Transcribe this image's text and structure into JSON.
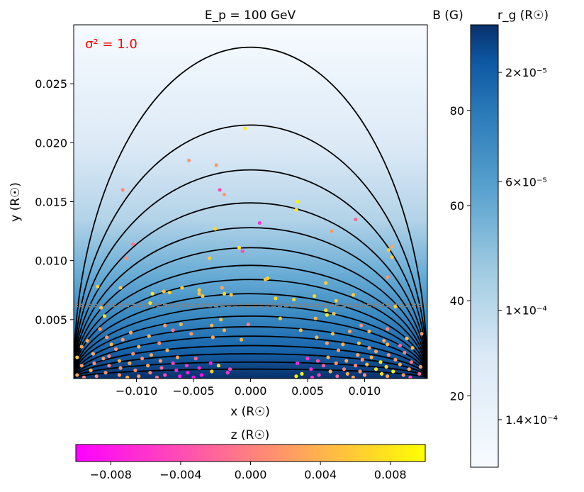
{
  "chart_data": {
    "type": "scatter",
    "title": "E_p = 100 GeV",
    "annotation": "σ² = 1.0",
    "annotation_color": "#ff0000",
    "xlabel": "x (R☉)",
    "ylabel": "y (R☉)",
    "xlim": [
      -0.0155,
      0.0155
    ],
    "ylim": [
      0.0,
      0.03
    ],
    "xticks": [
      -0.01,
      -0.005,
      0.0,
      0.005,
      0.01
    ],
    "xtick_labels": [
      "−0.010",
      "−0.005",
      "0.000",
      "0.005",
      "0.010"
    ],
    "yticks": [
      0.005,
      0.01,
      0.015,
      0.02,
      0.025
    ],
    "ytick_labels": [
      "0.005",
      "0.010",
      "0.015",
      "0.020",
      "0.025"
    ],
    "field_line_color": "#000000",
    "field_line_half_width": 0.0155,
    "field_line_apexes": [
      0.0281,
      0.0215,
      0.0177,
      0.0149,
      0.0128,
      0.0111,
      0.0096,
      0.0084,
      0.0072,
      0.0062,
      0.0053,
      0.0044,
      0.0036,
      0.0028,
      0.0021,
      0.0014,
      0.0008
    ],
    "reference_lines": {
      "style": "dashed",
      "color": "#808080",
      "y": [
        0.0061,
        0.0063
      ]
    },
    "background_colormap": "Blues",
    "z_colorbar": {
      "label": "z (R☉)",
      "colormap": "spring",
      "range": [
        -0.01,
        0.01
      ],
      "ticks": [
        -0.008,
        -0.004,
        0.0,
        0.004,
        0.008
      ],
      "tick_labels": [
        "−0.008",
        "−0.004",
        "0.000",
        "0.004",
        "0.008"
      ]
    },
    "b_colorbar": {
      "label_left": "B (G)",
      "label_right": "r_g (R☉)",
      "colormap": "Blues",
      "range": [
        5,
        98
      ],
      "ticks_left": [
        20,
        40,
        60,
        80
      ],
      "tick_labels_left": [
        "20",
        "40",
        "60",
        "80"
      ],
      "ticks_right": [
        15,
        38,
        65,
        88
      ],
      "tick_labels_right": [
        "1.4×10⁻⁴",
        "1×10⁻⁴",
        "6×10⁻⁵",
        "2×10⁻⁵"
      ]
    },
    "points": [
      {
        "x": -0.0005,
        "y": 0.0212,
        "z": 0.009
      },
      {
        "x": -0.0054,
        "y": 0.0185,
        "z": 0.002
      },
      {
        "x": -0.003,
        "y": 0.0181,
        "z": 0.002
      },
      {
        "x": -0.0112,
        "y": 0.016,
        "z": 0.001
      },
      {
        "x": -0.0027,
        "y": 0.016,
        "z": -0.004
      },
      {
        "x": -0.0023,
        "y": 0.0156,
        "z": 0.002
      },
      {
        "x": 0.0041,
        "y": 0.015,
        "z": 0.009
      },
      {
        "x": 0.004,
        "y": 0.0143,
        "z": 0.008
      },
      {
        "x": 0.0092,
        "y": 0.0135,
        "z": -0.002
      },
      {
        "x": 0.0008,
        "y": 0.0132,
        "z": -0.006
      },
      {
        "x": -0.0031,
        "y": 0.0127,
        "z": 0.007
      },
      {
        "x": 0.0071,
        "y": 0.0125,
        "z": 0.002
      },
      {
        "x": -0.0103,
        "y": 0.0114,
        "z": -0.001
      },
      {
        "x": 0.0124,
        "y": 0.0112,
        "z": 0.003
      },
      {
        "x": -0.001,
        "y": 0.0111,
        "z": 0.008
      },
      {
        "x": 0.0121,
        "y": 0.0109,
        "z": 0.006
      },
      {
        "x": -0.0007,
        "y": 0.0108,
        "z": -0.004
      },
      {
        "x": 0.0124,
        "y": 0.0103,
        "z": 0.006
      },
      {
        "x": -0.0109,
        "y": 0.0102,
        "z": 0.001
      },
      {
        "x": -0.0036,
        "y": 0.0102,
        "z": 0.006
      },
      {
        "x": 0.012,
        "y": 0.0086,
        "z": 0.002
      },
      {
        "x": 0.0015,
        "y": 0.0085,
        "z": 0.007
      },
      {
        "x": 0.0013,
        "y": 0.0084,
        "z": 0.005
      },
      {
        "x": 0.0066,
        "y": 0.0081,
        "z": 0.006
      },
      {
        "x": -0.0134,
        "y": 0.0078,
        "z": 0.006
      },
      {
        "x": -0.0114,
        "y": 0.0077,
        "z": 0.006
      },
      {
        "x": -0.006,
        "y": 0.0077,
        "z": 0.006
      },
      {
        "x": -0.0025,
        "y": 0.0077,
        "z": 0.003
      },
      {
        "x": -0.0045,
        "y": 0.0075,
        "z": 0.006
      },
      {
        "x": -0.0076,
        "y": 0.0074,
        "z": 0.005
      },
      {
        "x": -0.0071,
        "y": 0.0073,
        "z": 0.006
      },
      {
        "x": -0.0086,
        "y": 0.0072,
        "z": 0.008
      },
      {
        "x": -0.0045,
        "y": 0.0072,
        "z": 0.005
      },
      {
        "x": -0.0023,
        "y": 0.0072,
        "z": 0.007
      },
      {
        "x": -0.0042,
        "y": 0.007,
        "z": 0.006
      },
      {
        "x": 0.0056,
        "y": 0.007,
        "z": 0.007
      },
      {
        "x": 0.009,
        "y": 0.0071,
        "z": 0.006
      },
      {
        "x": -0.0017,
        "y": 0.0071,
        "z": 0.005
      },
      {
        "x": 0.0022,
        "y": 0.0068,
        "z": 0.007
      },
      {
        "x": 0.0038,
        "y": 0.0067,
        "z": 0.007
      },
      {
        "x": 0.0075,
        "y": 0.0066,
        "z": 0.006
      },
      {
        "x": -0.0088,
        "y": 0.0064,
        "z": 0.008
      },
      {
        "x": -0.0131,
        "y": 0.006,
        "z": 0.005
      },
      {
        "x": 0.0127,
        "y": 0.0061,
        "z": 0.006
      },
      {
        "x": 0.0066,
        "y": 0.0058,
        "z": 0.007
      },
      {
        "x": 0.0073,
        "y": 0.0055,
        "z": 0.005
      },
      {
        "x": 0.0067,
        "y": 0.0054,
        "z": 0.008
      },
      {
        "x": -0.0128,
        "y": 0.0053,
        "z": 0.008
      },
      {
        "x": 0.0026,
        "y": 0.0051,
        "z": 0.006
      },
      {
        "x": 0.0057,
        "y": 0.0051,
        "z": 0.004
      },
      {
        "x": -0.0026,
        "y": 0.005,
        "z": 0.005
      },
      {
        "x": -0.0061,
        "y": 0.0046,
        "z": 0.004
      },
      {
        "x": -0.0075,
        "y": 0.0045,
        "z": 0.002
      },
      {
        "x": -0.0034,
        "y": 0.0045,
        "z": 0.004
      },
      {
        "x": -0.0002,
        "y": 0.0046,
        "z": 0.0
      },
      {
        "x": 0.0097,
        "y": 0.0045,
        "z": 0.001
      },
      {
        "x": 0.012,
        "y": 0.0042,
        "z": 0.0
      },
      {
        "x": -0.0132,
        "y": 0.0042,
        "z": 0.002
      },
      {
        "x": -0.0068,
        "y": 0.0041,
        "z": -0.001
      },
      {
        "x": -0.0023,
        "y": 0.0041,
        "z": 0.004
      },
      {
        "x": 0.0044,
        "y": 0.0041,
        "z": 0.005
      },
      {
        "x": 0.0087,
        "y": 0.004,
        "z": 0.003
      },
      {
        "x": 0.0104,
        "y": 0.004,
        "z": 0.004
      },
      {
        "x": -0.0105,
        "y": 0.0039,
        "z": 0.003
      },
      {
        "x": -0.0052,
        "y": 0.0038,
        "z": 0.002
      },
      {
        "x": 0.0072,
        "y": 0.0038,
        "z": 0.005
      },
      {
        "x": 0.015,
        "y": 0.0038,
        "z": 0.002
      },
      {
        "x": -0.0089,
        "y": 0.0036,
        "z": 0.004
      },
      {
        "x": -0.0126,
        "y": 0.0035,
        "z": 0.002
      },
      {
        "x": -0.0033,
        "y": 0.0035,
        "z": 0.003
      },
      {
        "x": 0.0058,
        "y": 0.0035,
        "z": 0.004
      },
      {
        "x": 0.0137,
        "y": 0.0034,
        "z": 0.005
      },
      {
        "x": -0.0112,
        "y": 0.0033,
        "z": 0.002
      },
      {
        "x": -0.0008,
        "y": 0.0033,
        "z": 0.004
      },
      {
        "x": -0.0143,
        "y": 0.0032,
        "z": 0.003
      },
      {
        "x": 0.0117,
        "y": 0.0032,
        "z": 0.003
      },
      {
        "x": -0.008,
        "y": 0.003,
        "z": 0.001
      },
      {
        "x": 0.0067,
        "y": 0.003,
        "z": 0.002
      },
      {
        "x": 0.0095,
        "y": 0.003,
        "z": 0.005
      },
      {
        "x": -0.0122,
        "y": 0.0029,
        "z": 0.004
      },
      {
        "x": 0.0081,
        "y": 0.0029,
        "z": 0.004
      },
      {
        "x": 0.012,
        "y": 0.0029,
        "z": 0.004
      },
      {
        "x": 0.0131,
        "y": 0.0028,
        "z": -0.002
      },
      {
        "x": -0.0098,
        "y": 0.0027,
        "z": 0.004
      },
      {
        "x": -0.0148,
        "y": 0.0027,
        "z": 0.003
      },
      {
        "x": 0.0104,
        "y": 0.0026,
        "z": 0.002
      },
      {
        "x": 0.0142,
        "y": 0.0026,
        "z": 0.005
      },
      {
        "x": -0.0118,
        "y": 0.0025,
        "z": 0.002
      },
      {
        "x": -0.0073,
        "y": 0.0024,
        "z": 0.004
      },
      {
        "x": 0.0077,
        "y": 0.0024,
        "z": 0.002
      },
      {
        "x": 0.011,
        "y": 0.0023,
        "z": 0.003
      },
      {
        "x": 0.0135,
        "y": 0.0022,
        "z": 0.0
      },
      {
        "x": -0.0138,
        "y": 0.0021,
        "z": 0.004
      },
      {
        "x": -0.0103,
        "y": 0.0021,
        "z": 0.001
      },
      {
        "x": -0.0087,
        "y": 0.002,
        "z": 0.003
      },
      {
        "x": 0.0094,
        "y": 0.002,
        "z": 0.003
      },
      {
        "x": 0.0121,
        "y": 0.002,
        "z": 0.001
      },
      {
        "x": -0.0124,
        "y": 0.0019,
        "z": 0.0
      },
      {
        "x": -0.0064,
        "y": 0.0018,
        "z": 0.003
      },
      {
        "x": 0.0068,
        "y": 0.0018,
        "z": 0.004
      },
      {
        "x": 0.0106,
        "y": 0.0018,
        "z": 0.004
      },
      {
        "x": -0.0152,
        "y": 0.0018,
        "z": 0.006
      },
      {
        "x": -0.0129,
        "y": 0.0017,
        "z": 0.002
      },
      {
        "x": -0.0095,
        "y": 0.0017,
        "z": 0.001
      },
      {
        "x": -0.0048,
        "y": 0.0017,
        "z": -0.002
      },
      {
        "x": 0.005,
        "y": 0.0017,
        "z": -0.006
      },
      {
        "x": 0.0098,
        "y": 0.0016,
        "z": 0.001
      },
      {
        "x": 0.0127,
        "y": 0.0016,
        "z": 0.002
      },
      {
        "x": -0.0115,
        "y": 0.0015,
        "z": 0.004
      },
      {
        "x": -0.0079,
        "y": 0.0015,
        "z": 0.002
      },
      {
        "x": 0.0059,
        "y": 0.0015,
        "z": -0.004
      },
      {
        "x": 0.0084,
        "y": 0.0015,
        "z": 0.003
      },
      {
        "x": 0.0114,
        "y": 0.0014,
        "z": 0.009
      },
      {
        "x": 0.0141,
        "y": 0.0014,
        "z": -0.001
      },
      {
        "x": -0.0137,
        "y": 0.0013,
        "z": 0.001
      },
      {
        "x": -0.0106,
        "y": 0.0013,
        "z": 0.003
      },
      {
        "x": -0.0068,
        "y": 0.0013,
        "z": -0.005
      },
      {
        "x": -0.0035,
        "y": 0.0013,
        "z": -0.008
      },
      {
        "x": 0.0041,
        "y": 0.0013,
        "z": -0.007
      },
      {
        "x": 0.0075,
        "y": 0.0013,
        "z": 0.002
      },
      {
        "x": 0.0102,
        "y": 0.0012,
        "z": 0.005
      },
      {
        "x": 0.0131,
        "y": 0.0012,
        "z": 0.004
      },
      {
        "x": -0.0148,
        "y": 0.0011,
        "z": 0.002
      },
      {
        "x": -0.0124,
        "y": 0.0011,
        "z": 0.0
      },
      {
        "x": -0.009,
        "y": 0.0011,
        "z": 0.003
      },
      {
        "x": -0.0056,
        "y": 0.0011,
        "z": -0.006
      },
      {
        "x": -0.0028,
        "y": 0.0011,
        "z": 0.007
      },
      {
        "x": 0.0064,
        "y": 0.0011,
        "z": -0.003
      },
      {
        "x": 0.0092,
        "y": 0.0011,
        "z": 0.001
      },
      {
        "x": 0.0119,
        "y": 0.001,
        "z": 0.007
      },
      {
        "x": 0.0149,
        "y": 0.001,
        "z": 0.002
      },
      {
        "x": -0.0114,
        "y": 0.0009,
        "z": 0.002
      },
      {
        "x": -0.0078,
        "y": 0.0009,
        "z": -0.002
      },
      {
        "x": -0.0045,
        "y": 0.0009,
        "z": -0.007
      },
      {
        "x": -0.0018,
        "y": 0.0008,
        "z": -0.005
      },
      {
        "x": 0.0053,
        "y": 0.0008,
        "z": -0.007
      },
      {
        "x": 0.0082,
        "y": 0.0008,
        "z": 0.0
      },
      {
        "x": 0.011,
        "y": 0.0008,
        "z": 0.008
      },
      {
        "x": 0.0139,
        "y": 0.0008,
        "z": 0.003
      },
      {
        "x": -0.014,
        "y": 0.0007,
        "z": 0.004
      },
      {
        "x": -0.0101,
        "y": 0.0007,
        "z": 0.001
      },
      {
        "x": -0.0065,
        "y": 0.0007,
        "z": -0.007
      },
      {
        "x": -0.0034,
        "y": 0.0006,
        "z": 0.006
      },
      {
        "x": 0.007,
        "y": 0.0006,
        "z": 0.004
      },
      {
        "x": 0.0096,
        "y": 0.0006,
        "z": 0.002
      },
      {
        "x": 0.0125,
        "y": 0.0006,
        "z": 0.009
      },
      {
        "x": -0.0127,
        "y": 0.0005,
        "z": 0.001
      },
      {
        "x": -0.0088,
        "y": 0.0005,
        "z": 0.0
      },
      {
        "x": -0.0055,
        "y": 0.0005,
        "z": -0.008
      },
      {
        "x": -0.002,
        "y": 0.0005,
        "z": -0.006
      },
      {
        "x": 0.0045,
        "y": 0.0004,
        "z": 0.009
      },
      {
        "x": 0.0085,
        "y": 0.0004,
        "z": 0.003
      },
      {
        "x": 0.0115,
        "y": 0.0004,
        "z": 0.008
      },
      {
        "x": 0.0148,
        "y": 0.0004,
        "z": -0.002
      },
      {
        "x": -0.0152,
        "y": 0.0003,
        "z": 0.003
      },
      {
        "x": -0.0115,
        "y": 0.0003,
        "z": 0.002
      },
      {
        "x": -0.0075,
        "y": 0.0003,
        "z": -0.004
      },
      {
        "x": -0.0043,
        "y": 0.0003,
        "z": -0.009
      },
      {
        "x": 0.006,
        "y": 0.0003,
        "z": -0.005
      },
      {
        "x": 0.01,
        "y": 0.0003,
        "z": 0.001
      },
      {
        "x": 0.0134,
        "y": 0.0003,
        "z": 0.002
      },
      {
        "x": -0.0135,
        "y": 0.0002,
        "z": 0.001
      },
      {
        "x": -0.0098,
        "y": 0.0002,
        "z": 0.002
      },
      {
        "x": -0.0062,
        "y": 0.0002,
        "z": -0.008
      },
      {
        "x": 0.004,
        "y": 0.0002,
        "z": 0.009
      },
      {
        "x": 0.0076,
        "y": 0.0002,
        "z": -0.002
      },
      {
        "x": 0.012,
        "y": 0.0002,
        "z": 0.003
      },
      {
        "x": -0.0146,
        "y": 0.0001,
        "z": 0.0
      },
      {
        "x": -0.0108,
        "y": 0.0001,
        "z": 0.004
      },
      {
        "x": -0.0082,
        "y": 0.0001,
        "z": -0.001
      },
      {
        "x": -0.005,
        "y": 0.0001,
        "z": -0.009
      },
      {
        "x": 0.0054,
        "y": 0.0001,
        "z": -0.006
      },
      {
        "x": 0.009,
        "y": 0.0001,
        "z": 0.003
      },
      {
        "x": 0.014,
        "y": 0.0001,
        "z": -0.004
      }
    ]
  }
}
